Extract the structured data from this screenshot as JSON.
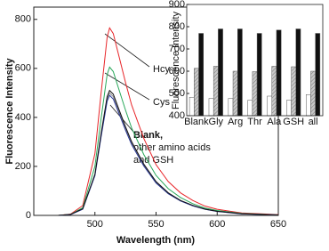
{
  "chart_data": [
    {
      "type": "line",
      "xlabel": "Wavelength (nm)",
      "ylabel": "Fluorescence Intensity",
      "x": [
        470,
        480,
        490,
        500,
        505,
        510,
        512,
        515,
        520,
        525,
        530,
        540,
        550,
        560,
        570,
        580,
        590,
        600,
        620,
        650
      ],
      "series": [
        {
          "color": "#e8262a",
          "values": [
            0,
            5,
            40,
            252,
            497,
            727,
            765,
            742,
            643,
            543,
            451,
            314,
            207,
            138,
            92,
            61,
            38,
            25,
            10,
            3
          ]
        },
        {
          "color": "#2aa85a",
          "values": [
            0,
            4,
            31,
            200,
            393,
            575,
            605,
            587,
            508,
            430,
            357,
            248,
            163,
            109,
            73,
            48,
            30,
            20,
            8,
            2
          ]
        },
        {
          "color": "#888888",
          "values": [
            0,
            4,
            26,
            165,
            325,
            475,
            500,
            485,
            420,
            355,
            295,
            205,
            135,
            90,
            60,
            40,
            25,
            17,
            7,
            2
          ]
        },
        {
          "color": "#2b3a9a",
          "values": [
            0,
            3,
            25,
            162,
            319,
            466,
            490,
            475,
            412,
            348,
            289,
            201,
            132,
            88,
            59,
            39,
            25,
            16,
            6,
            2
          ]
        },
        {
          "color": "#111111",
          "values": [
            0,
            4,
            27,
            168,
            332,
            485,
            510,
            495,
            428,
            362,
            301,
            209,
            138,
            92,
            61,
            41,
            26,
            17,
            7,
            2
          ]
        }
      ],
      "xlim": [
        450,
        650
      ],
      "xticks": [
        500,
        550,
        600,
        650
      ],
      "ylim": [
        0,
        850
      ],
      "yticks": [
        0,
        200,
        400,
        600,
        800
      ],
      "annotations": [
        {
          "lines": [
            "Hcy"
          ]
        },
        {
          "lines": [
            "Cys"
          ]
        },
        {
          "lines": [
            "Blank,",
            "other amino acids",
            "and GSH"
          ]
        }
      ]
    },
    {
      "type": "bar",
      "ylabel": "Fluorescence Intensity",
      "categories": [
        "Blank",
        "Gly",
        "Arg",
        "Thr",
        "Ala",
        "GSH",
        "all"
      ],
      "series": [
        {
          "color": "#ffffff",
          "values": [
            483,
            478,
            478,
            470,
            488,
            470,
            495
          ]
        },
        {
          "color": "#bbbbbb",
          "pattern": "hatch",
          "values": [
            613,
            622,
            600,
            598,
            622,
            620,
            600
          ]
        },
        {
          "color": "#111111",
          "values": [
            770,
            790,
            790,
            770,
            785,
            790,
            770
          ]
        }
      ],
      "ylim": [
        400,
        900
      ],
      "yticks": [
        400,
        500,
        600,
        700,
        800,
        900
      ]
    }
  ]
}
